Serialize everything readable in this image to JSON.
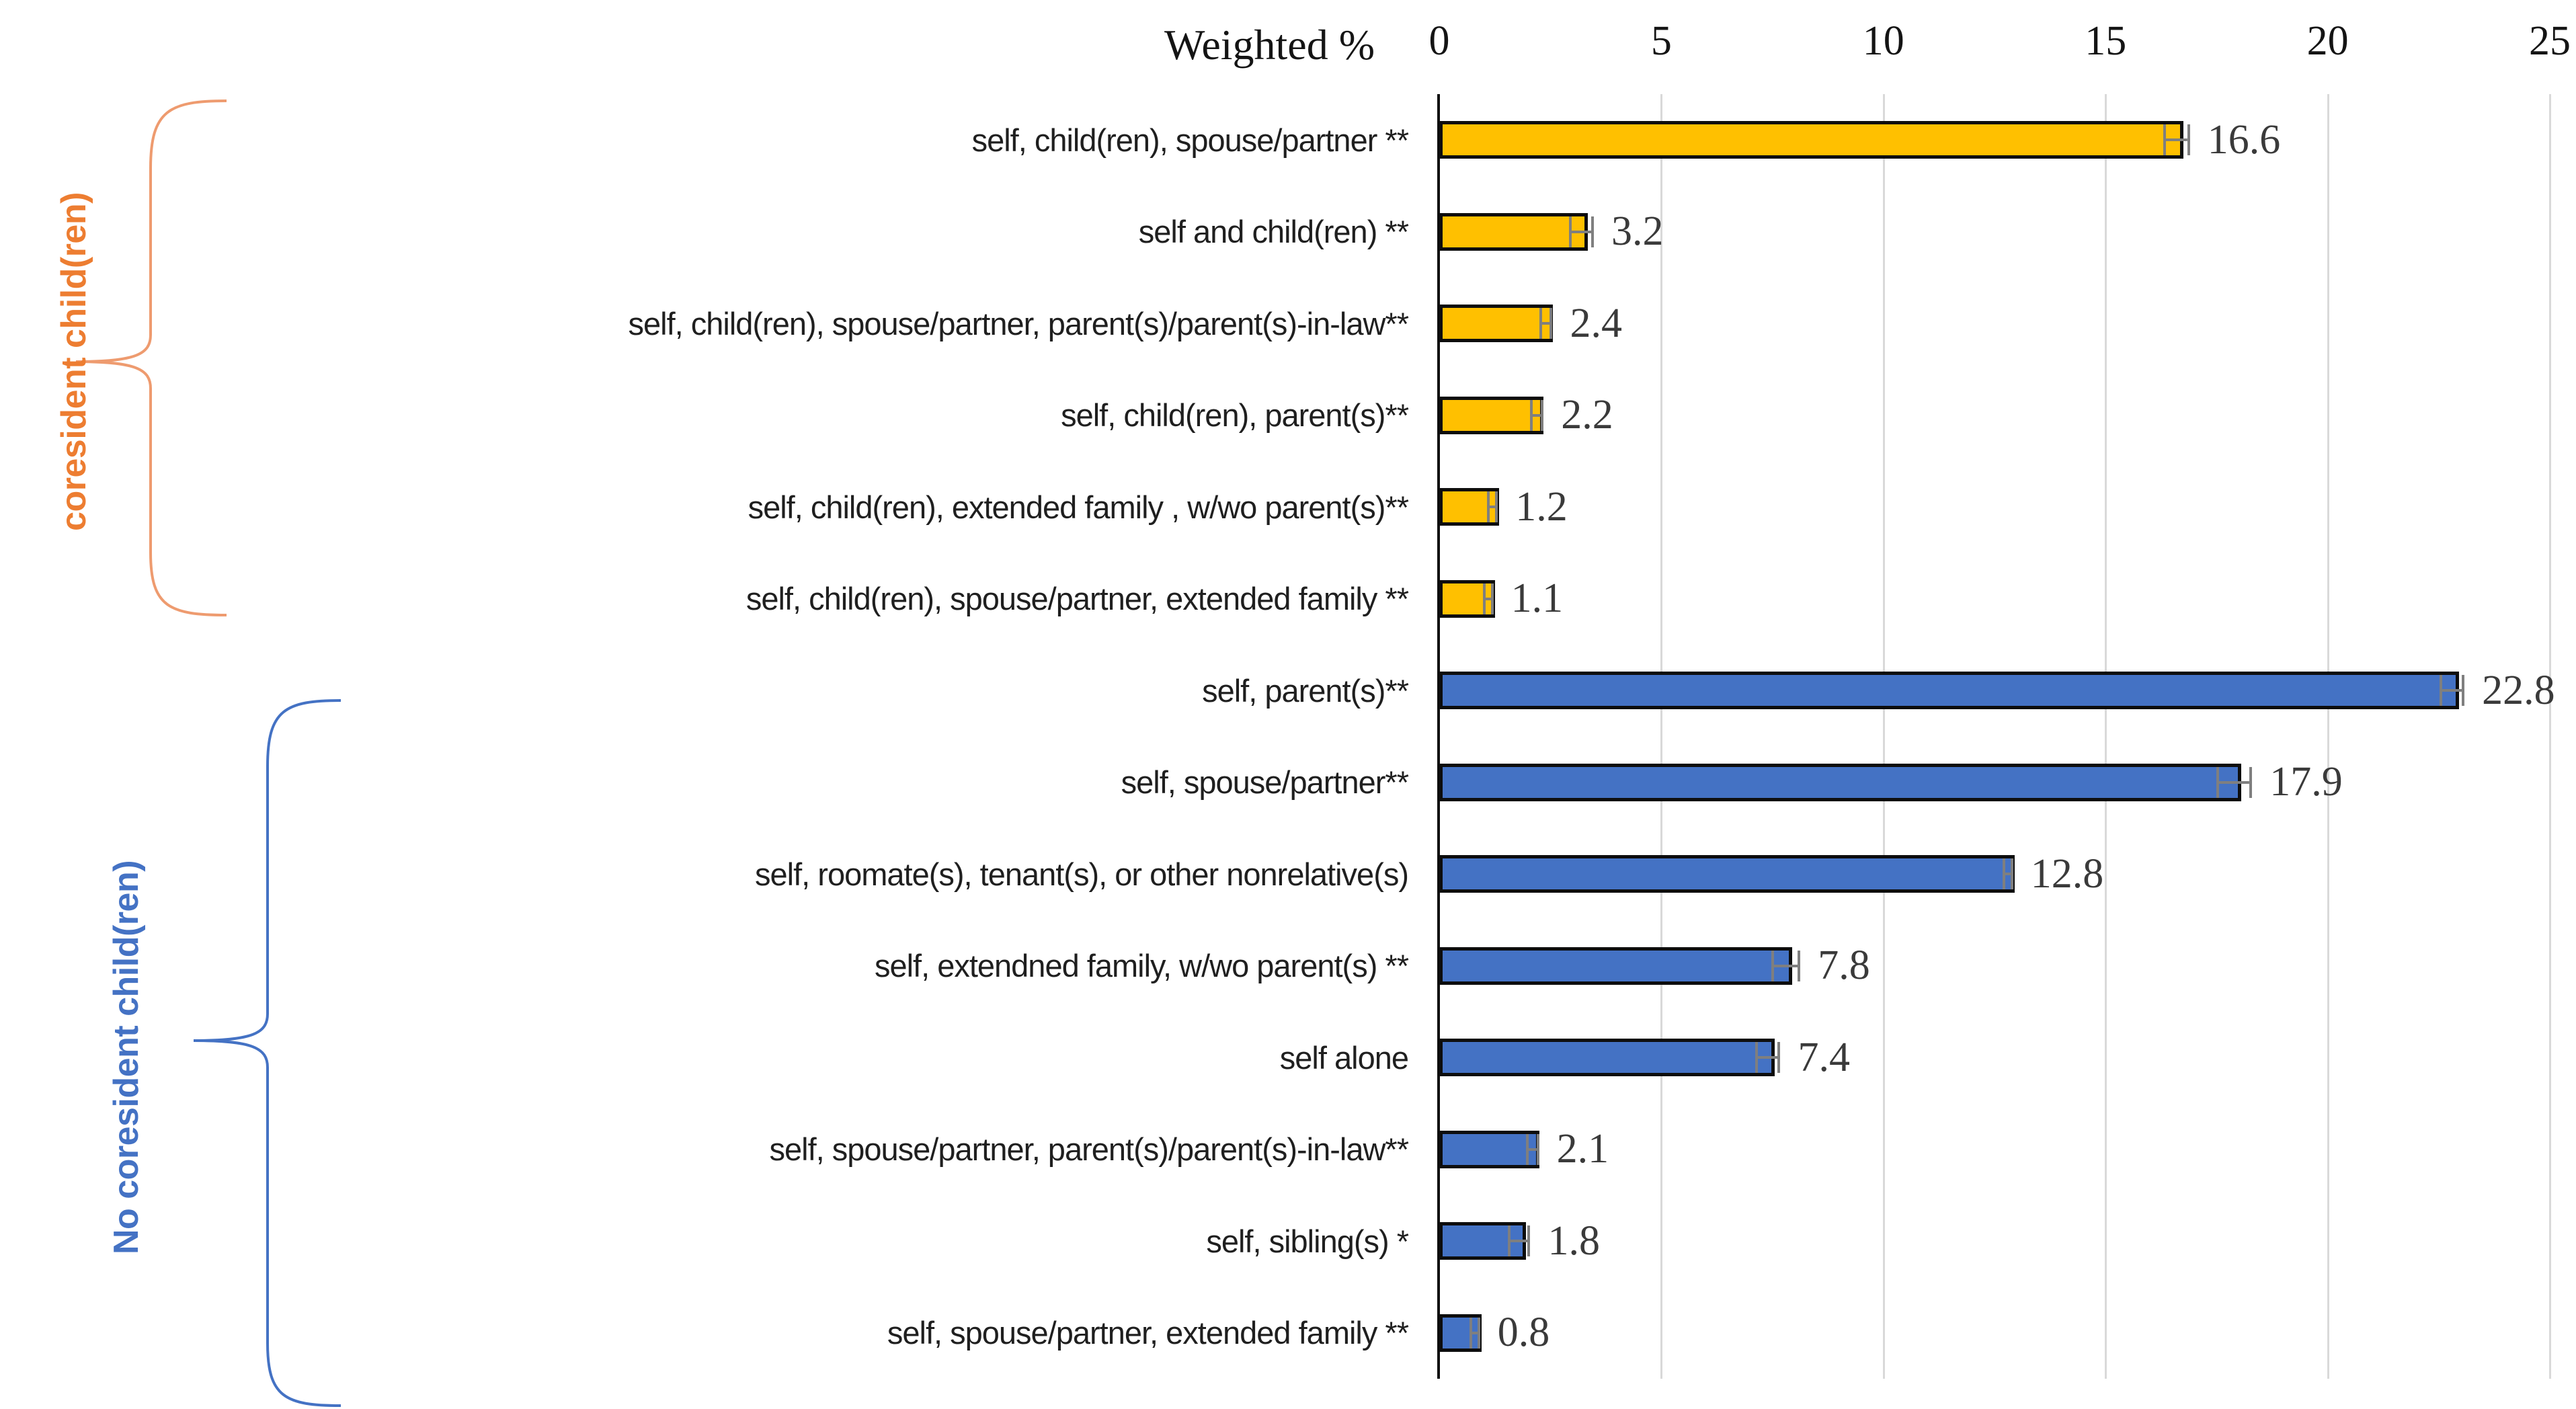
{
  "header": {
    "axis_title": "Weighted %"
  },
  "groups": [
    {
      "name": "coresident child(ren)",
      "bar_color": "#FFC000",
      "label_color": "#ED7D31",
      "brace_color": "#EE9B6F"
    },
    {
      "name": "No coresident child(ren)",
      "bar_color": "#4472C4",
      "label_color": "#4472C4",
      "brace_color": "#4472C4"
    }
  ],
  "chart_data": {
    "type": "bar",
    "orientation": "horizontal",
    "title": "",
    "xlabel": "Weighted %",
    "ylabel": "",
    "xlim": [
      0,
      25
    ],
    "xticks": [
      0,
      5,
      10,
      15,
      20,
      25
    ],
    "grid": true,
    "error_bars": true,
    "colors": {
      "grid": "#d9d9d9",
      "axis": "#0d0d0d",
      "whisker": "#7f7f7f",
      "value_text": "#3a3a3a",
      "category_text": "#1f1f1f"
    },
    "series": [
      {
        "name": "coresident child(ren)",
        "color": "#FFC000",
        "points": [
          {
            "label": "self, child(ren), spouse/partner **",
            "value": 16.6,
            "error": 0.3
          },
          {
            "label": "self and child(ren) **",
            "value": 3.2,
            "error": 0.28
          },
          {
            "label": "self, child(ren), spouse/partner, parent(s)/parent(s)-in-law**",
            "value": 2.4,
            "error": 0.15
          },
          {
            "label": "self, child(ren), parent(s)**",
            "value": 2.2,
            "error": 0.15
          },
          {
            "label": "self, child(ren), extended family , w/wo parent(s)**",
            "value": 1.2,
            "error": 0.12
          },
          {
            "label": "self, child(ren), spouse/partner, extended family **",
            "value": 1.1,
            "error": 0.12
          }
        ]
      },
      {
        "name": "No coresident child(ren)",
        "color": "#4472C4",
        "points": [
          {
            "label": "self, parent(s)**",
            "value": 22.8,
            "error": 0.28
          },
          {
            "label": "self, spouse/partner**",
            "value": 17.9,
            "error": 0.4
          },
          {
            "label": "self, roomate(s), tenant(s), or other nonrelative(s)",
            "value": 12.8,
            "error": 0.12
          },
          {
            "label": "self, extendned family, w/wo parent(s) **",
            "value": 7.8,
            "error": 0.33
          },
          {
            "label": "self alone",
            "value": 7.4,
            "error": 0.28
          },
          {
            "label": "self, spouse/partner, parent(s)/parent(s)-in-law**",
            "value": 2.1,
            "error": 0.15
          },
          {
            "label": "self, sibling(s) *",
            "value": 1.8,
            "error": 0.25
          },
          {
            "label": "self, spouse/partner, extended family **",
            "value": 0.8,
            "error": 0.12
          }
        ]
      }
    ]
  }
}
